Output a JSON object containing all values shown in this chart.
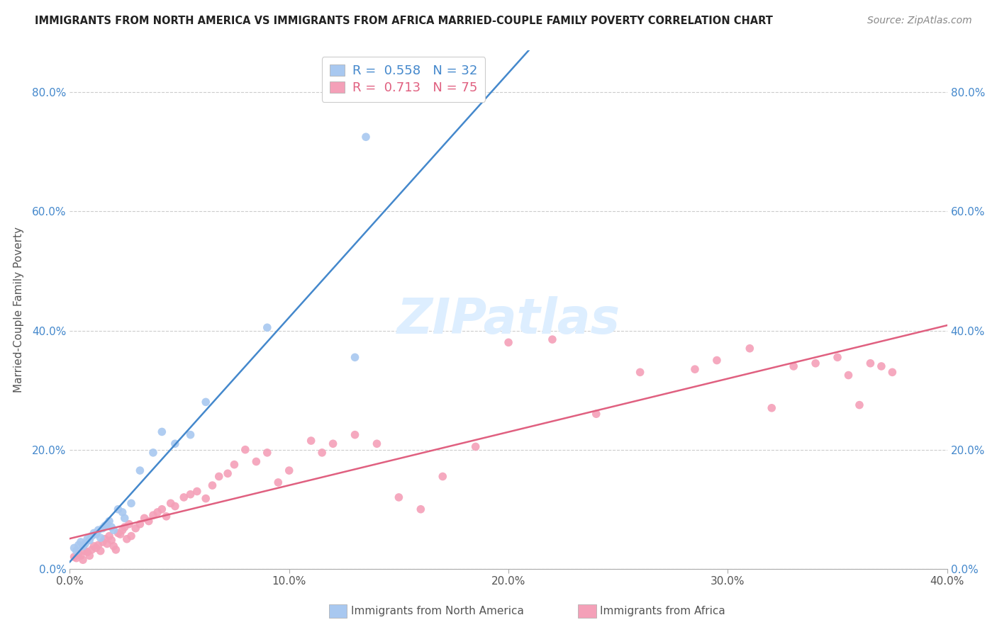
{
  "title": "IMMIGRANTS FROM NORTH AMERICA VS IMMIGRANTS FROM AFRICA MARRIED-COUPLE FAMILY POVERTY CORRELATION CHART",
  "source": "Source: ZipAtlas.com",
  "ylabel": "Married-Couple Family Poverty",
  "xlim": [
    0.0,
    0.4
  ],
  "ylim": [
    0.0,
    0.87
  ],
  "xticks": [
    0.0,
    0.1,
    0.2,
    0.3,
    0.4
  ],
  "yticks": [
    0.0,
    0.2,
    0.4,
    0.6,
    0.8
  ],
  "xtick_labels": [
    "0.0%",
    "10.0%",
    "20.0%",
    "30.0%",
    "40.0%"
  ],
  "ytick_labels": [
    "0.0%",
    "20.0%",
    "40.0%",
    "60.0%",
    "80.0%"
  ],
  "blue_color": "#a8c8f0",
  "pink_color": "#f4a0b8",
  "blue_line_color": "#4488cc",
  "pink_line_color": "#e06080",
  "legend_blue_R": "0.558",
  "legend_blue_N": "32",
  "legend_pink_R": "0.713",
  "legend_pink_N": "75",
  "legend_label1": "Immigrants from North America",
  "legend_label2": "Immigrants from Africa",
  "watermark": "ZIPatlas",
  "watermark_color": "#ddeeff",
  "blue_scatter_x": [
    0.002,
    0.003,
    0.004,
    0.005,
    0.006,
    0.007,
    0.008,
    0.009,
    0.01,
    0.011,
    0.012,
    0.013,
    0.014,
    0.015,
    0.016,
    0.017,
    0.018,
    0.019,
    0.02,
    0.022,
    0.024,
    0.025,
    0.028,
    0.032,
    0.038,
    0.042,
    0.048,
    0.055,
    0.062,
    0.09,
    0.13,
    0.135
  ],
  "blue_scatter_y": [
    0.035,
    0.03,
    0.04,
    0.045,
    0.038,
    0.042,
    0.05,
    0.048,
    0.055,
    0.06,
    0.058,
    0.065,
    0.052,
    0.068,
    0.072,
    0.075,
    0.08,
    0.07,
    0.065,
    0.1,
    0.095,
    0.085,
    0.11,
    0.165,
    0.195,
    0.23,
    0.21,
    0.225,
    0.28,
    0.405,
    0.355,
    0.725
  ],
  "pink_scatter_x": [
    0.002,
    0.003,
    0.004,
    0.005,
    0.006,
    0.007,
    0.008,
    0.009,
    0.01,
    0.011,
    0.012,
    0.013,
    0.014,
    0.015,
    0.016,
    0.017,
    0.018,
    0.019,
    0.02,
    0.021,
    0.022,
    0.023,
    0.024,
    0.025,
    0.026,
    0.027,
    0.028,
    0.03,
    0.032,
    0.034,
    0.036,
    0.038,
    0.04,
    0.042,
    0.044,
    0.046,
    0.048,
    0.052,
    0.055,
    0.058,
    0.062,
    0.065,
    0.068,
    0.072,
    0.075,
    0.08,
    0.085,
    0.09,
    0.095,
    0.1,
    0.11,
    0.115,
    0.12,
    0.13,
    0.14,
    0.15,
    0.16,
    0.17,
    0.185,
    0.2,
    0.22,
    0.24,
    0.26,
    0.285,
    0.295,
    0.31,
    0.32,
    0.33,
    0.34,
    0.35,
    0.355,
    0.36,
    0.365,
    0.37,
    0.375
  ],
  "pink_scatter_y": [
    0.02,
    0.018,
    0.025,
    0.022,
    0.015,
    0.03,
    0.028,
    0.022,
    0.032,
    0.038,
    0.035,
    0.04,
    0.03,
    0.045,
    0.05,
    0.042,
    0.055,
    0.048,
    0.038,
    0.032,
    0.06,
    0.058,
    0.065,
    0.07,
    0.05,
    0.075,
    0.055,
    0.068,
    0.075,
    0.085,
    0.08,
    0.09,
    0.095,
    0.1,
    0.088,
    0.11,
    0.105,
    0.12,
    0.125,
    0.13,
    0.118,
    0.14,
    0.155,
    0.16,
    0.175,
    0.2,
    0.18,
    0.195,
    0.145,
    0.165,
    0.215,
    0.195,
    0.21,
    0.225,
    0.21,
    0.12,
    0.1,
    0.155,
    0.205,
    0.38,
    0.385,
    0.26,
    0.33,
    0.335,
    0.35,
    0.37,
    0.27,
    0.34,
    0.345,
    0.355,
    0.325,
    0.275,
    0.345,
    0.34,
    0.33
  ]
}
